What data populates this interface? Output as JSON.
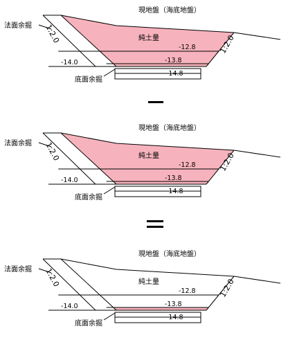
{
  "labels": {
    "ground": "現地盤（海底地盤）",
    "soil": "純土量",
    "slope_excavation": "法面余掘",
    "bottom_excavation": "底面余掘",
    "slope_ratio": "1:2.0",
    "lv_12_8": "-12.8",
    "lv_13_8": "-13.8",
    "lv_14_8": "-14.8",
    "lv_14_0": "-14.0"
  },
  "panels": [
    {
      "id": "panel-1",
      "fill": "full"
    },
    {
      "id": "panel-2",
      "fill": "net-plus-bottom"
    },
    {
      "id": "panel-3",
      "fill": "bottom-strip"
    }
  ],
  "operators": [
    "minus",
    "equals"
  ],
  "colors": {
    "fill": "#f7b3bd",
    "line": "#000000",
    "background": "#ffffff"
  }
}
